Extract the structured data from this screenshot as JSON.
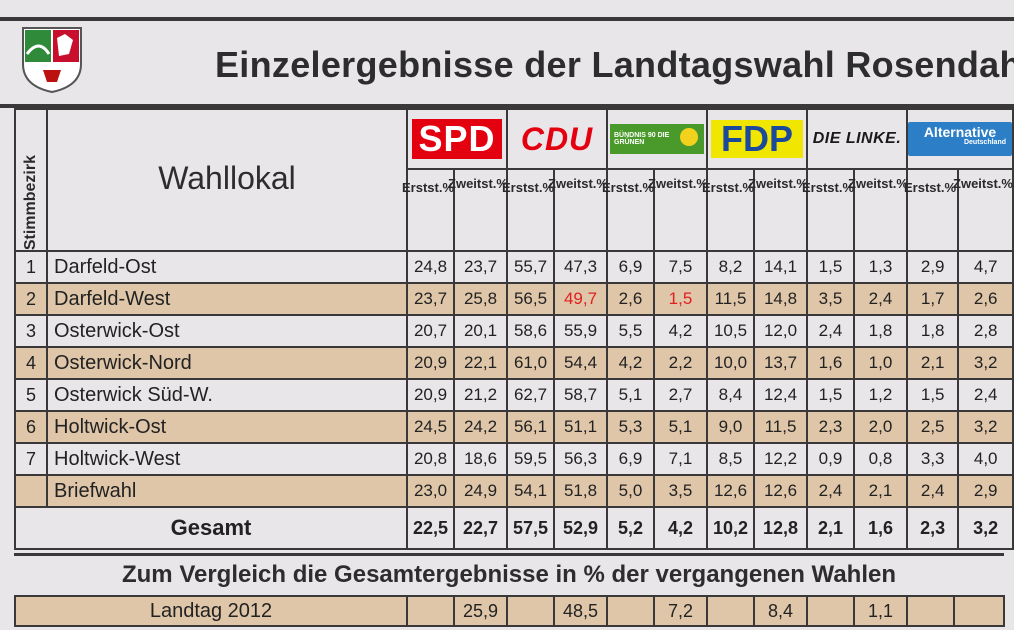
{
  "title": "Einzelergebnisse der Landtagswahl Rosendahl",
  "headers": {
    "stimmbezirk": "Stimmbezirk",
    "wahllokal": "Wahllokal",
    "erst": "Erstst.%",
    "zweit": "Zweitst.%"
  },
  "parties": [
    {
      "name": "SPD",
      "icon": "spd-logo",
      "color": "#e3000f"
    },
    {
      "name": "CDU",
      "icon": "cdu-logo",
      "color": "#e3000f"
    },
    {
      "name": "BÜNDNIS 90 DIE GRÜNEN",
      "icon": "gruene-logo",
      "color": "#4a9a2b"
    },
    {
      "name": "FDP",
      "icon": "fdp-logo",
      "color": "#f1e600"
    },
    {
      "name": "DIE LINKE.",
      "icon": "linke-logo",
      "color": "#1a1a1a"
    },
    {
      "name": "Alternative",
      "sub": "Deutschland",
      "icon": "afd-logo",
      "color": "#2c7fc6"
    }
  ],
  "rows": [
    {
      "nr": "1",
      "name": "Darfeld-Ost",
      "values": [
        "24,8",
        "23,7",
        "55,7",
        "47,3",
        "6,9",
        "7,5",
        "8,2",
        "14,1",
        "1,5",
        "1,3",
        "2,9",
        "4,7"
      ]
    },
    {
      "nr": "2",
      "name": "Darfeld-West",
      "values": [
        "23,7",
        "25,8",
        "56,5",
        "49,7",
        "2,6",
        "1,5",
        "11,5",
        "14,8",
        "3,5",
        "2,4",
        "1,7",
        "2,6"
      ]
    },
    {
      "nr": "3",
      "name": "Osterwick-Ost",
      "values": [
        "20,7",
        "20,1",
        "58,6",
        "55,9",
        "5,5",
        "4,2",
        "10,5",
        "12,0",
        "2,4",
        "1,8",
        "1,8",
        "2,8"
      ]
    },
    {
      "nr": "4",
      "name": "Osterwick-Nord",
      "values": [
        "20,9",
        "22,1",
        "61,0",
        "54,4",
        "4,2",
        "2,2",
        "10,0",
        "13,7",
        "1,6",
        "1,0",
        "2,1",
        "3,2"
      ]
    },
    {
      "nr": "5",
      "name": "Osterwick Süd-W.",
      "values": [
        "20,9",
        "21,2",
        "62,7",
        "58,7",
        "5,1",
        "2,7",
        "8,4",
        "12,4",
        "1,5",
        "1,2",
        "1,5",
        "2,4"
      ]
    },
    {
      "nr": "6",
      "name": "Holtwick-Ost",
      "values": [
        "24,5",
        "24,2",
        "56,1",
        "51,1",
        "5,3",
        "5,1",
        "9,0",
        "11,5",
        "2,3",
        "2,0",
        "2,5",
        "3,2"
      ]
    },
    {
      "nr": "7",
      "name": "Holtwick-West",
      "values": [
        "20,8",
        "18,6",
        "59,5",
        "56,3",
        "6,9",
        "7,1",
        "8,5",
        "12,2",
        "0,9",
        "0,8",
        "3,3",
        "4,0"
      ]
    },
    {
      "nr": "",
      "name": "Briefwahl",
      "values": [
        "23,0",
        "24,9",
        "54,1",
        "51,8",
        "5,0",
        "3,5",
        "12,6",
        "12,6",
        "2,4",
        "2,1",
        "2,4",
        "2,9"
      ]
    }
  ],
  "gesamt": {
    "name": "Gesamt",
    "values": [
      "22,5",
      "22,7",
      "57,5",
      "52,9",
      "5,2",
      "4,2",
      "10,2",
      "12,8",
      "2,1",
      "1,6",
      "2,3",
      "3,2"
    ]
  },
  "compare_title": "Zum Vergleich die Gesamtergebnisse in % der vergangenen Wahlen",
  "compare_rows": [
    {
      "name": "Landtag 2012",
      "values": [
        "",
        "25,9",
        "",
        "48,5",
        "",
        "7,2",
        "",
        "8,4",
        "",
        "1,1",
        "",
        ""
      ]
    }
  ]
}
